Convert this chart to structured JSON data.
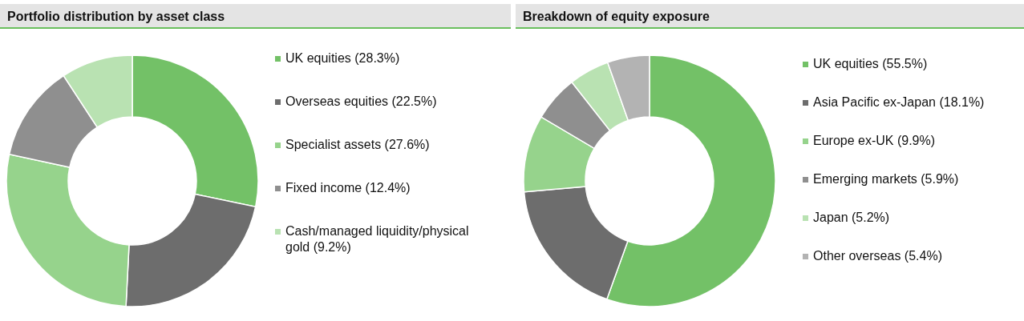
{
  "chart_data": [
    {
      "type": "donut",
      "title": "Portfolio distribution by asset class",
      "legend": "right",
      "categories": [
        "UK equities (28.3%)",
        "Overseas equities (22.5%)",
        "Specialist assets (27.6%)",
        "Fixed income (12.4%)",
        "Cash/managed liquidity/physical gold (9.2%)"
      ],
      "values": [
        28.3,
        22.5,
        27.6,
        12.4,
        9.2
      ],
      "colors": [
        "#73c167",
        "#6d6d6d",
        "#96d38c",
        "#8f8f8f",
        "#b9e2b2"
      ]
    },
    {
      "type": "donut",
      "title": "Breakdown of equity exposure",
      "legend": "right",
      "categories": [
        "UK equities (55.5%)",
        "Asia Pacific ex-Japan (18.1%)",
        "Europe ex-UK (9.9%)",
        "Emerging markets (5.9%)",
        "Japan (5.2%)",
        "Other overseas (5.4%)"
      ],
      "values": [
        55.5,
        18.1,
        9.9,
        5.9,
        5.2,
        5.4
      ],
      "colors": [
        "#73c167",
        "#6d6d6d",
        "#96d38c",
        "#8f8f8f",
        "#b9e2b2",
        "#b3b3b3"
      ]
    }
  ]
}
